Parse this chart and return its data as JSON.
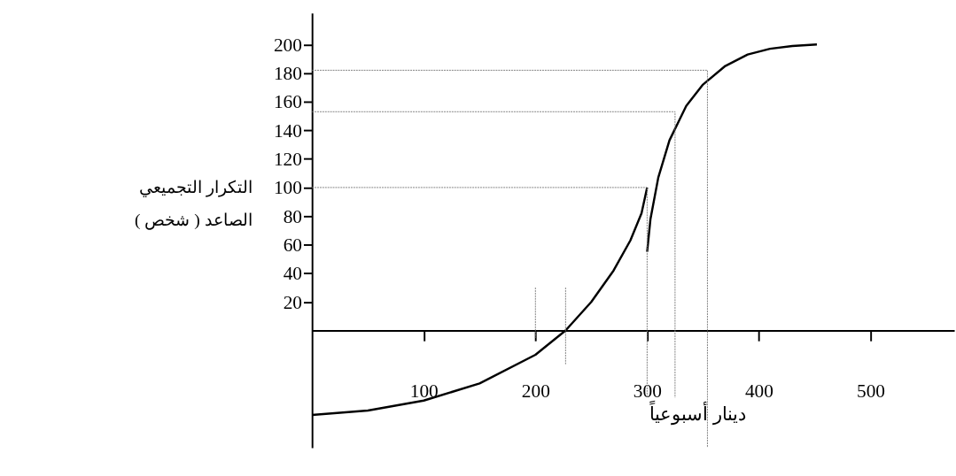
{
  "chart_data": {
    "type": "line",
    "xlabel": "دينار أسبوعياً",
    "ylabel": "التكرار التجميعي\nالصاعد ( شخص )",
    "xlim": [
      0,
      575
    ],
    "ylim": [
      -82,
      222
    ],
    "xticks": [
      100,
      200,
      300,
      400,
      500
    ],
    "yticks": [
      20,
      40,
      60,
      80,
      100,
      120,
      140,
      160,
      180,
      200
    ],
    "grid": false,
    "marker": "none",
    "series": [
      {
        "color": "#000000",
        "line_style": "solid",
        "x": [
          0,
          50,
          100,
          150,
          200,
          227,
          250,
          270,
          285,
          295,
          300
        ],
        "values": [
          -59,
          -56,
          -49,
          -37,
          -17,
          0,
          20,
          42,
          63,
          82,
          100
        ]
      },
      {
        "color": "#000000",
        "line_style": "solid",
        "x": [
          300,
          303,
          310,
          320,
          335,
          350,
          370,
          390,
          410,
          430,
          452
        ],
        "values": [
          55,
          78,
          107,
          133,
          157,
          172,
          185,
          193,
          197,
          199,
          200
        ]
      },
      {
        "color": "#808080",
        "line_style": "dotted",
        "x": [
          0,
          300,
          300
        ],
        "values": [
          100,
          100,
          -47
        ]
      },
      {
        "color": "#808080",
        "line_style": "dotted",
        "x": [
          0,
          325,
          325
        ],
        "values": [
          153,
          153,
          -47
        ]
      },
      {
        "color": "#808080",
        "line_style": "dotted",
        "x": [
          0,
          354,
          354
        ],
        "values": [
          182,
          182,
          -82
        ]
      },
      {
        "color": "#808080",
        "line_style": "dotted",
        "x": [
          200,
          200
        ],
        "values": [
          30,
          -5
        ]
      },
      {
        "color": "#808080",
        "line_style": "dotted",
        "x": [
          227,
          227
        ],
        "values": [
          30,
          -24
        ]
      }
    ]
  }
}
